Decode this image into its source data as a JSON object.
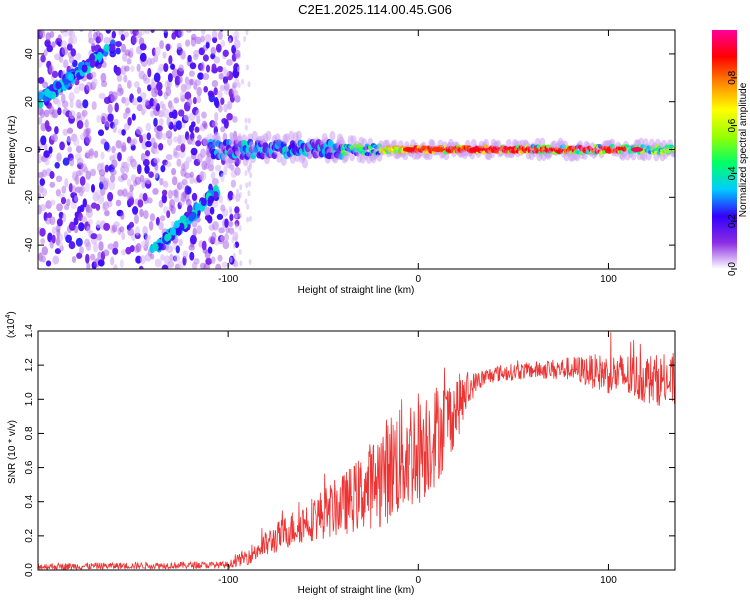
{
  "title": "C2E1.2025.114.00.45.G06",
  "chart_data": [
    {
      "type": "heatmap",
      "xlabel": "Height of straight line (km)",
      "ylabel": "Frequency (Hz)",
      "xlim": [
        -200,
        135
      ],
      "ylim": [
        -50,
        50
      ],
      "xticks": [
        -100,
        0,
        100
      ],
      "xtick_labels": [
        "-100",
        "0",
        "100"
      ],
      "yticks": [
        -40,
        -20,
        0,
        20,
        40
      ],
      "ytick_labels": [
        "-40",
        "-20",
        "0",
        "20",
        "40"
      ],
      "colorbar": {
        "label": "Normalized spectral amplitude",
        "range": [
          0,
          1
        ],
        "ticks": [
          0.0,
          0.2,
          0.4,
          0.6,
          0.8
        ],
        "tick_labels": [
          "0.0",
          "0.2",
          "0.4",
          "0.6",
          "0.8"
        ],
        "colors": [
          "#ffffff",
          "#8a2be2",
          "#3300ff",
          "#00ccff",
          "#00ff66",
          "#99ff00",
          "#ffff00",
          "#ff8800",
          "#ff0000",
          "#ff0099"
        ]
      },
      "features": {
        "noise_region_x": [
          -200,
          -95
        ],
        "rising_streak": {
          "x": [
            -200,
            -160
          ],
          "freq": [
            20,
            43
          ]
        },
        "falling_streak": {
          "x": [
            -140,
            -105
          ],
          "freq": [
            -43,
            -17
          ]
        },
        "center_band": {
          "x": [
            -110,
            135
          ],
          "freq": 0
        }
      }
    },
    {
      "type": "line",
      "xlabel": "Height of straight line (km)",
      "ylabel": "SNR (10 * v/v)",
      "multiplier": "(x10",
      "multiplier_exp": "4",
      "xlim": [
        -200,
        135
      ],
      "ylim": [
        0,
        1.4
      ],
      "xticks": [
        -100,
        0,
        100
      ],
      "xtick_labels": [
        "-100",
        "0",
        "100"
      ],
      "yticks": [
        0.0,
        0.2,
        0.4,
        0.6,
        0.8,
        1.0,
        1.2,
        1.4
      ],
      "ytick_labels": [
        "0.0",
        "0.2",
        "0.4",
        "0.6",
        "0.8",
        "1.0",
        "1.2",
        "1.4"
      ],
      "color": "#ee3333",
      "envelope": {
        "x": [
          -200,
          -100,
          -90,
          -80,
          -70,
          -60,
          -50,
          -40,
          -30,
          -20,
          -10,
          0,
          10,
          20,
          30,
          40,
          60,
          80,
          100,
          120,
          135
        ],
        "mean": [
          0.02,
          0.03,
          0.08,
          0.15,
          0.22,
          0.28,
          0.33,
          0.38,
          0.45,
          0.55,
          0.65,
          0.72,
          0.8,
          0.95,
          1.1,
          1.15,
          1.17,
          1.18,
          1.15,
          1.12,
          1.1
        ],
        "spread": [
          0.02,
          0.02,
          0.05,
          0.08,
          0.1,
          0.12,
          0.15,
          0.18,
          0.22,
          0.3,
          0.35,
          0.35,
          0.3,
          0.2,
          0.06,
          0.05,
          0.05,
          0.07,
          0.12,
          0.15,
          0.15
        ]
      }
    }
  ]
}
